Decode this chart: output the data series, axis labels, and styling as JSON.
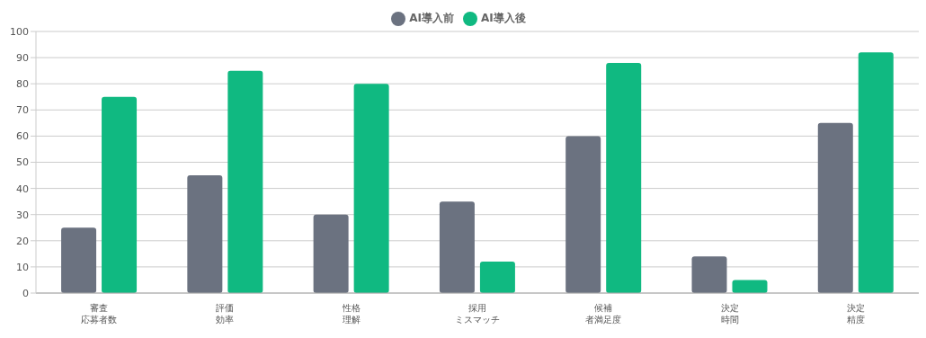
{
  "chart_data": {
    "type": "bar",
    "categories": [
      "審査応募者数",
      "評価効率",
      "性格理解",
      "採用ミスマッチ",
      "候補者満足度",
      "決定時間",
      "決定精度"
    ],
    "series": [
      {
        "name": "AI導入前",
        "color": "#6b7280",
        "values": [
          25,
          45,
          30,
          35,
          60,
          14,
          65
        ]
      },
      {
        "name": "AI導入後",
        "color": "#10b981",
        "values": [
          75,
          85,
          80,
          12,
          88,
          5,
          92
        ]
      }
    ],
    "ylim": [
      0,
      100
    ],
    "yticks": [
      0,
      10,
      20,
      30,
      40,
      50,
      60,
      70,
      80,
      90,
      100
    ],
    "grid": "y",
    "legend": "top"
  }
}
